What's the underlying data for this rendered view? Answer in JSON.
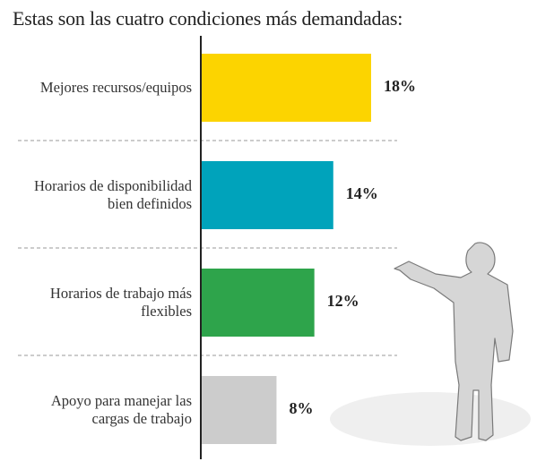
{
  "chart_data": {
    "type": "bar",
    "orientation": "horizontal",
    "title": "Estas son las cuatro condiciones más demandadas:",
    "categories": [
      "Mejores recursos/equipos",
      "Horarios de disponibilidad bien definidos",
      "Horarios de trabajo más flexibles",
      "Apoyo para manejar las cargas de trabajo"
    ],
    "category_lines": [
      [
        "Mejores recursos/equipos"
      ],
      [
        "Horarios de disponibilidad",
        "bien definidos"
      ],
      [
        "Horarios de trabajo más",
        "flexibles"
      ],
      [
        "Apoyo para manejar las",
        "cargas de trabajo"
      ]
    ],
    "values": [
      18,
      14,
      12,
      8
    ],
    "value_labels": [
      "18%",
      "14%",
      "12%",
      "8%"
    ],
    "colors": [
      "#FCD400",
      "#00A3BB",
      "#2EA44B",
      "#CCCCCC"
    ],
    "xlim": [
      0,
      18
    ],
    "xlabel": "",
    "ylabel": "",
    "grid": false,
    "legend": "none"
  }
}
